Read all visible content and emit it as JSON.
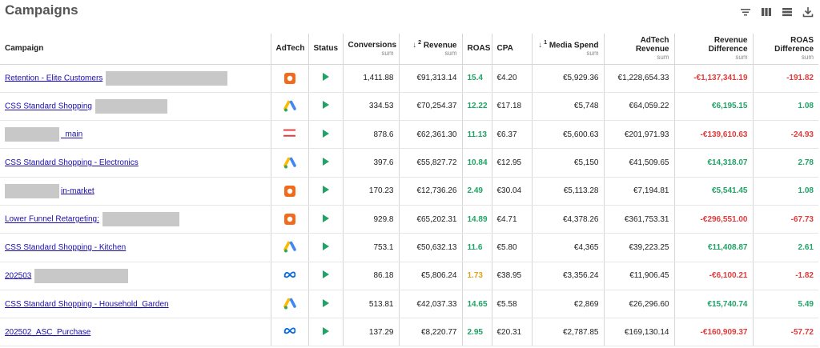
{
  "header": {
    "title": "Campaigns"
  },
  "toolbar": {
    "icons": [
      "filter-icon",
      "columns-icon",
      "density-icon",
      "download-icon"
    ]
  },
  "columns": {
    "campaign": "Campaign",
    "adtech": "AdTech",
    "status": "Status",
    "conversions": "Conversions",
    "conversions_sub": "sum",
    "revenue": "Revenue",
    "revenue_sort_order": "2",
    "revenue_sub": "sum",
    "roas": "ROAS",
    "cpa": "CPA",
    "media_spend": "Media Spend",
    "media_spend_sort_order": "1",
    "media_spend_sub": "sum",
    "adtech_revenue": "AdTech Revenue",
    "adtech_revenue_sub": "sum",
    "revenue_difference": "Revenue Difference",
    "revenue_difference_sub": "sum",
    "roas_difference": "ROAS Difference",
    "roas_difference_sub": "sum"
  },
  "colors": {
    "positive": "#21a366",
    "negative": "#e03b3b",
    "warning": "#e0a41b",
    "link": "#1a0dab",
    "redaction": "#c8c8c8"
  },
  "rows": [
    {
      "pre": "",
      "link": "Retention - Elite Customers",
      "redact_after": true,
      "adtech": "orange-square-icon",
      "status": "active-play-icon",
      "conversions": "1,411.88",
      "revenue": "€91,313.14",
      "roas": "15.4",
      "roas_tone": "pos",
      "cpa": "€4.20",
      "media_spend": "€5,929.36",
      "adtech_revenue": "€1,228,654.33",
      "revenue_difference": "-€1,137,341.19",
      "rd_tone": "neg",
      "roas_difference": "-191.82",
      "roasd_tone": "neg"
    },
    {
      "pre": "",
      "link": "CSS Standard Shopping",
      "redact_after": true,
      "adtech": "google-ads-icon",
      "status": "active-play-icon",
      "conversions": "334.53",
      "revenue": "€70,254.37",
      "roas": "12.22",
      "roas_tone": "pos",
      "cpa": "€17.18",
      "media_spend": "€5,748",
      "adtech_revenue": "€64,059.22",
      "revenue_difference": "€6,195.15",
      "rd_tone": "pos",
      "roas_difference": "1.08",
      "roasd_tone": "pos"
    },
    {
      "pre": "redact",
      "link": "_main",
      "redact_after": false,
      "adtech": "red-stripes-icon",
      "status": "active-play-icon",
      "conversions": "878.6",
      "revenue": "€62,361.30",
      "roas": "11.13",
      "roas_tone": "pos",
      "cpa": "€6.37",
      "media_spend": "€5,600.63",
      "adtech_revenue": "€201,971.93",
      "revenue_difference": "-€139,610.63",
      "rd_tone": "neg",
      "roas_difference": "-24.93",
      "roasd_tone": "neg"
    },
    {
      "pre": "",
      "link": "CSS Standard Shopping - Electronics",
      "redact_after": false,
      "adtech": "google-ads-icon",
      "status": "active-play-icon",
      "conversions": "397.6",
      "revenue": "€55,827.72",
      "roas": "10.84",
      "roas_tone": "pos",
      "cpa": "€12.95",
      "media_spend": "€5,150",
      "adtech_revenue": "€41,509.65",
      "revenue_difference": "€14,318.07",
      "rd_tone": "pos",
      "roas_difference": "2.78",
      "roasd_tone": "pos"
    },
    {
      "pre": "redact",
      "link": "in-market",
      "redact_after": false,
      "adtech": "orange-square-icon",
      "status": "active-play-icon",
      "conversions": "170.23",
      "revenue": "€12,736.26",
      "roas": "2.49",
      "roas_tone": "pos",
      "cpa": "€30.04",
      "media_spend": "€5,113.28",
      "adtech_revenue": "€7,194.81",
      "revenue_difference": "€5,541.45",
      "rd_tone": "pos",
      "roas_difference": "1.08",
      "roasd_tone": "pos"
    },
    {
      "pre": "",
      "link": "Lower Funnel Retargeting:",
      "redact_after": true,
      "adtech": "orange-square-icon",
      "status": "active-play-icon",
      "conversions": "929.8",
      "revenue": "€65,202.31",
      "roas": "14.89",
      "roas_tone": "pos",
      "cpa": "€4.71",
      "media_spend": "€4,378.26",
      "adtech_revenue": "€361,753.31",
      "revenue_difference": "-€296,551.00",
      "rd_tone": "neg",
      "roas_difference": "-67.73",
      "roasd_tone": "neg"
    },
    {
      "pre": "",
      "link": "CSS Standard Shopping - Kitchen",
      "redact_after": false,
      "adtech": "google-ads-icon",
      "status": "active-play-icon",
      "conversions": "753.1",
      "revenue": "€50,632.13",
      "roas": "11.6",
      "roas_tone": "pos",
      "cpa": "€5.80",
      "media_spend": "€4,365",
      "adtech_revenue": "€39,223.25",
      "revenue_difference": "€11,408.87",
      "rd_tone": "pos",
      "roas_difference": "2.61",
      "roasd_tone": "pos"
    },
    {
      "pre": "",
      "link": "202503",
      "redact_after": true,
      "adtech": "meta-icon",
      "status": "active-play-icon",
      "conversions": "86.18",
      "revenue": "€5,806.24",
      "roas": "1.73",
      "roas_tone": "warn",
      "cpa": "€38.95",
      "media_spend": "€3,356.24",
      "adtech_revenue": "€11,906.45",
      "revenue_difference": "-€6,100.21",
      "rd_tone": "neg",
      "roas_difference": "-1.82",
      "roasd_tone": "neg"
    },
    {
      "pre": "",
      "link": "CSS Standard Shopping - Household_Garden",
      "redact_after": false,
      "adtech": "google-ads-icon",
      "status": "active-play-icon",
      "conversions": "513.81",
      "revenue": "€42,037.33",
      "roas": "14.65",
      "roas_tone": "pos",
      "cpa": "€5.58",
      "media_spend": "€2,869",
      "adtech_revenue": "€26,296.60",
      "revenue_difference": "€15,740.74",
      "rd_tone": "pos",
      "roas_difference": "5.49",
      "roasd_tone": "pos"
    },
    {
      "pre": "",
      "link": "202502_ASC_Purchase",
      "redact_after": false,
      "adtech": "meta-icon",
      "status": "active-play-icon",
      "conversions": "137.29",
      "revenue": "€8,220.77",
      "roas": "2.95",
      "roas_tone": "pos",
      "cpa": "€20.31",
      "media_spend": "€2,787.85",
      "adtech_revenue": "€169,130.14",
      "revenue_difference": "-€160,909.37",
      "rd_tone": "neg",
      "roas_difference": "-57.72",
      "roasd_tone": "neg"
    }
  ]
}
